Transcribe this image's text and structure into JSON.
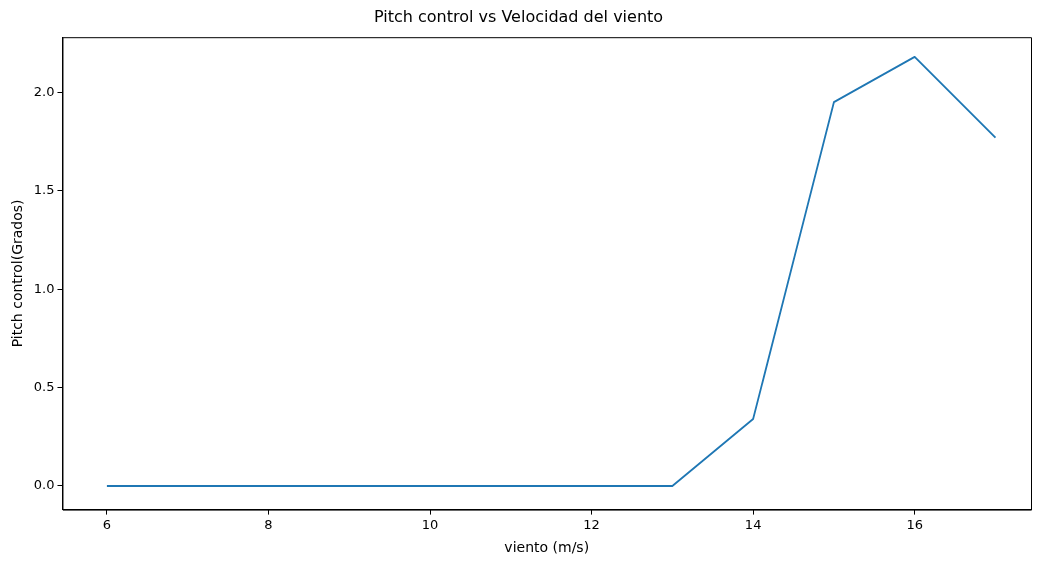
{
  "chart_data": {
    "type": "line",
    "title": "Pitch control vs Velocidad del viento",
    "xlabel": "viento (m/s)",
    "ylabel": "Pitch control(Grados)",
    "x": [
      6,
      7,
      8,
      9,
      10,
      11,
      12,
      13,
      14,
      15,
      16,
      17
    ],
    "series": [
      {
        "color": "#1f77b4",
        "values": [
          0,
          0,
          0,
          0,
          0,
          0,
          0,
          0,
          0.34,
          1.95,
          2.18,
          1.77
        ]
      }
    ],
    "xlim": [
      5.45,
      17.44
    ],
    "xticks": [
      6,
      8,
      10,
      12,
      14,
      16
    ],
    "ylim": [
      -0.12,
      2.28
    ],
    "yticks": [
      {
        "value": 0,
        "label": "0.0"
      },
      {
        "value": 0.5,
        "label": "0.5"
      },
      {
        "value": 1,
        "label": "1.0"
      },
      {
        "value": 1.5,
        "label": "1.5"
      },
      {
        "value": 2,
        "label": "2.0"
      }
    ],
    "grid": false,
    "legend": false,
    "marker": "none",
    "line_style": "solid"
  }
}
